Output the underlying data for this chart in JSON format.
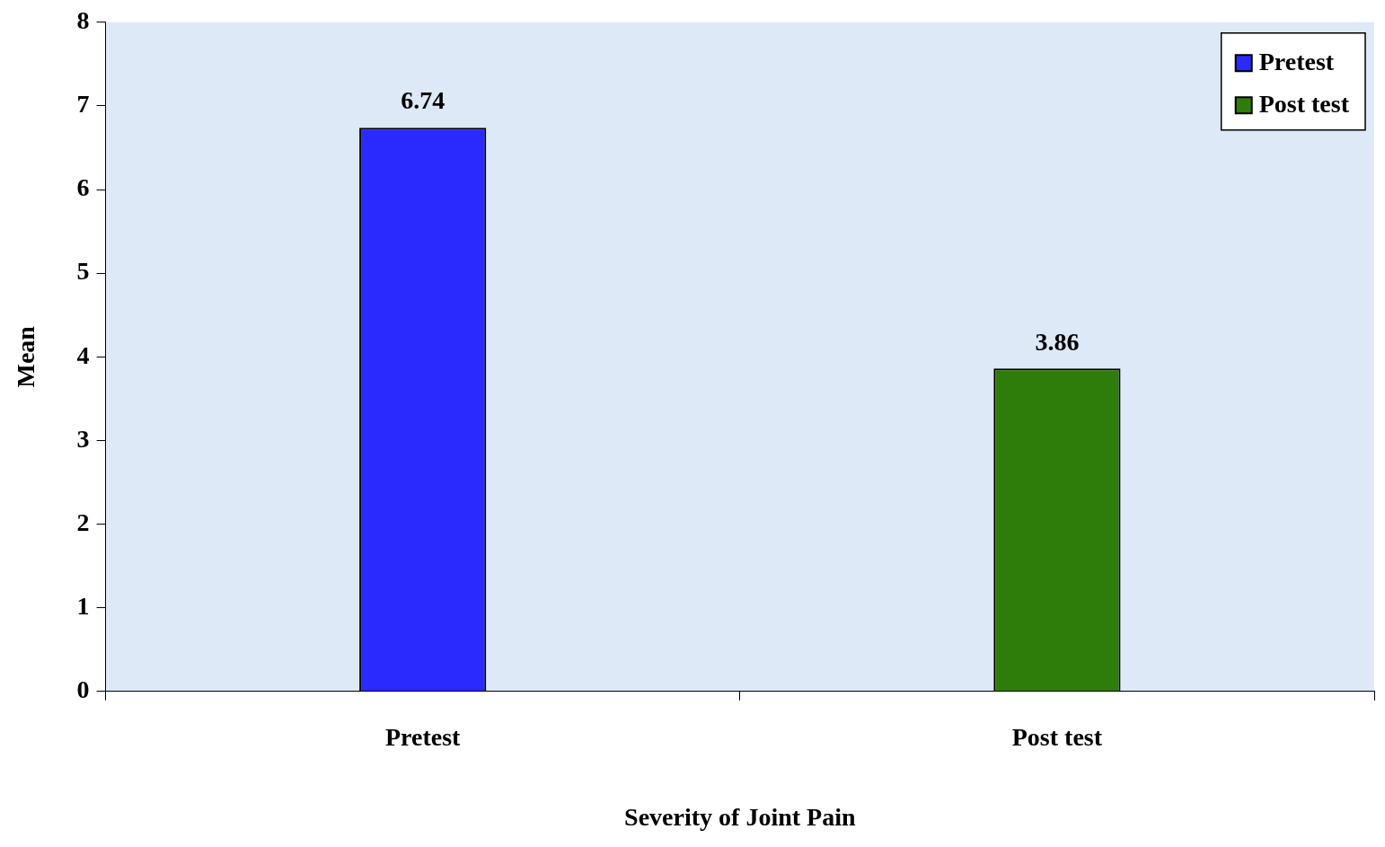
{
  "chart_data": {
    "type": "bar",
    "xlabel": "Severity of Joint Pain",
    "ylabel": "Mean",
    "categories": [
      "Pretest",
      "Post test"
    ],
    "series": [
      {
        "name": "Pretest",
        "color": "#2a2aff",
        "values": [
          6.74,
          null
        ]
      },
      {
        "name": "Post test",
        "color": "#2e7d0a",
        "values": [
          null,
          3.86
        ]
      }
    ],
    "ylim": [
      0,
      8
    ],
    "yticks": [
      0,
      1,
      2,
      3,
      4,
      5,
      6,
      7,
      8
    ],
    "grid": false,
    "legend": "top right",
    "data_labels": true
  }
}
